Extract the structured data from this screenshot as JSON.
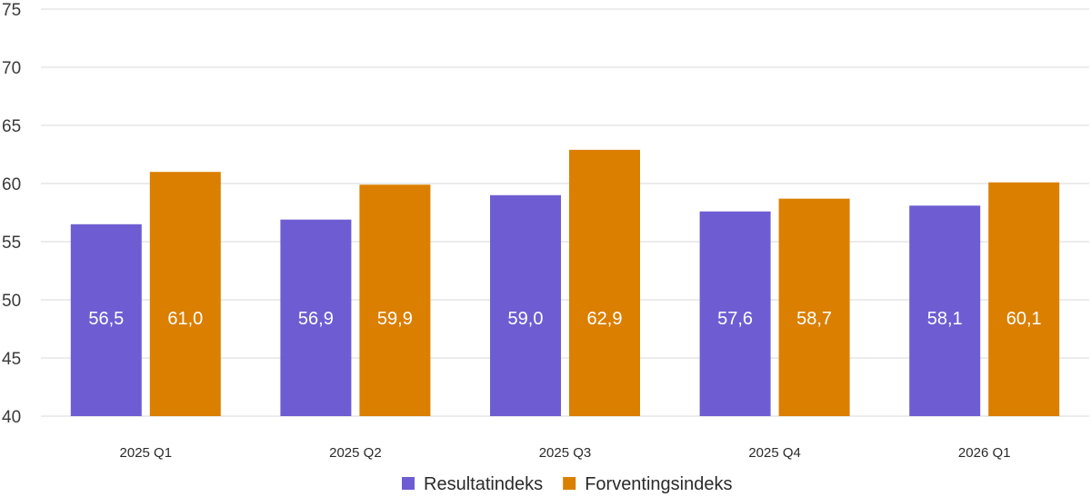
{
  "chart_data": {
    "type": "bar",
    "categories": [
      "2025 Q1",
      "2025 Q2",
      "2025 Q3",
      "2025 Q4",
      "2026 Q1"
    ],
    "series": [
      {
        "name": "Resultatindeks",
        "color": "#6e5dd2",
        "values": [
          56.5,
          56.9,
          59.0,
          57.6,
          58.1
        ],
        "labels": [
          "56,5",
          "56,9",
          "59,0",
          "57,6",
          "58,1"
        ]
      },
      {
        "name": "Forventingsindeks",
        "color": "#db7f00",
        "values": [
          61.0,
          59.9,
          62.9,
          58.7,
          60.1
        ],
        "labels": [
          "61,0",
          "59,9",
          "62,9",
          "58,7",
          "60,1"
        ]
      }
    ],
    "ylim": [
      40,
      75
    ],
    "yticks": [
      40,
      45,
      50,
      55,
      60,
      65,
      70,
      75
    ],
    "grid": true,
    "legend": "bottom-center",
    "title": "",
    "xlabel": "",
    "ylabel": ""
  }
}
